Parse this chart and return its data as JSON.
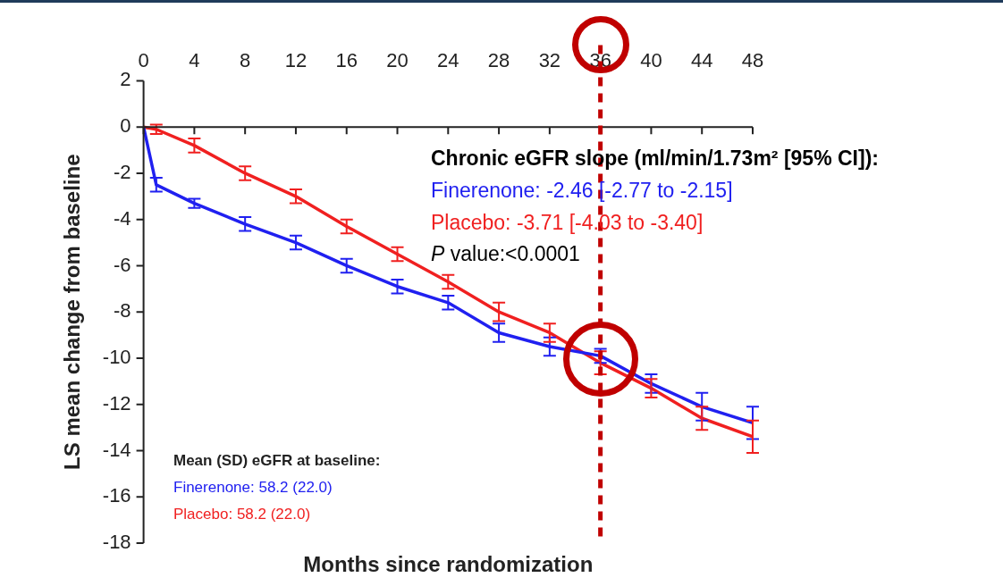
{
  "chart_data": {
    "type": "line",
    "xlabel": "Months since randomization",
    "ylabel": "LS mean change from baseline",
    "xlim": [
      0,
      48
    ],
    "xticks": [
      0,
      4,
      8,
      12,
      16,
      20,
      24,
      28,
      32,
      36,
      40,
      44,
      48
    ],
    "ylim": [
      -18,
      2
    ],
    "yticks": [
      2,
      0,
      -2,
      -4,
      -6,
      -8,
      -10,
      -12,
      -14,
      -16,
      -18
    ],
    "grid": false,
    "legend": false,
    "line_style": "solid",
    "series": [
      {
        "name": "Finerenone",
        "color": "#2020f0",
        "x": [
          0,
          1,
          4,
          8,
          12,
          16,
          20,
          24,
          28,
          32,
          36,
          40,
          44,
          48
        ],
        "values": [
          0,
          -2.5,
          -3.3,
          -4.2,
          -5.0,
          -6.0,
          -6.9,
          -7.6,
          -8.9,
          -9.5,
          -9.9,
          -11.1,
          -12.1,
          -12.8
        ],
        "errors": [
          null,
          0.3,
          0.2,
          0.3,
          0.3,
          0.3,
          0.3,
          0.3,
          0.4,
          0.4,
          0.3,
          0.4,
          0.6,
          0.7
        ]
      },
      {
        "name": "Placebo",
        "color": "#f02020",
        "x": [
          0,
          1,
          4,
          8,
          12,
          16,
          20,
          24,
          28,
          32,
          36,
          40,
          44,
          48
        ],
        "values": [
          0,
          -0.1,
          -0.8,
          -2.0,
          -3.0,
          -4.3,
          -5.5,
          -6.7,
          -8.0,
          -8.9,
          -10.2,
          -11.3,
          -12.6,
          -13.4
        ],
        "errors": [
          null,
          0.2,
          0.3,
          0.3,
          0.3,
          0.3,
          0.3,
          0.3,
          0.4,
          0.4,
          0.5,
          0.4,
          0.5,
          0.7
        ]
      }
    ],
    "ref_lines": [
      {
        "axis": "x",
        "value": 36,
        "color": "#c00000",
        "line_style": "dashed"
      }
    ],
    "annotations": [
      "Chronic eGFR slope (ml/min/1.73m² [95% CI]):",
      ": -2.46 [-2.77 to -2.15]",
      ": -3.71 [-4.03 to -3.40]",
      "P value:<0.0001",
      "Mean (SD) eGFR at baseline:",
      ": 58.2 (22.0)",
      ": 58.2 (22.0)"
    ]
  }
}
